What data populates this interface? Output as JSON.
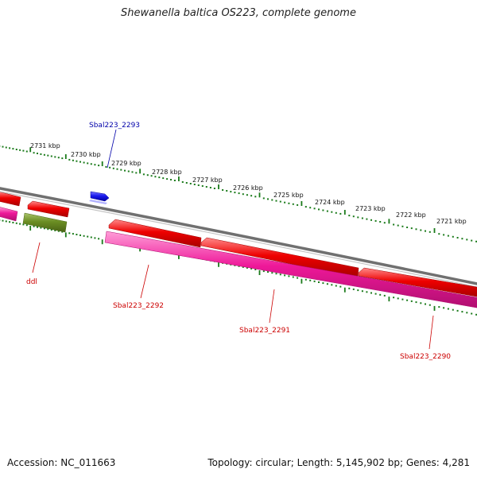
{
  "title": "Shewanella baltica OS223, complete genome",
  "footer": {
    "accession": "Accession: NC_011663",
    "summary": "Topology: circular; Length: 5,145,902 bp; Genes: 4,281"
  },
  "colors": {
    "backbone": "#808080",
    "forward_gene": "#ee0000",
    "reverse_gene": "#ee1899",
    "olive_gene": "#6b8e23",
    "blue_gene": "#1a1aee",
    "tick": "#1a7a1a",
    "label_red": "#cc0000",
    "label_blue": "#0000aa"
  },
  "scale_labels": [
    "2731 kbp",
    "2730 kbp",
    "2729 kbp",
    "2728 kbp",
    "2727 kbp",
    "2726 kbp",
    "2725 kbp",
    "2724 kbp",
    "2723 kbp",
    "2722 kbp",
    "2721 kbp"
  ],
  "gene_labels": {
    "sbal2293": "Sbal223_2293",
    "ddl": "ddl",
    "sbal2292": "Sbal223_2292",
    "sbal2291": "Sbal223_2291",
    "sbal2290": "Sbal223_2290"
  }
}
